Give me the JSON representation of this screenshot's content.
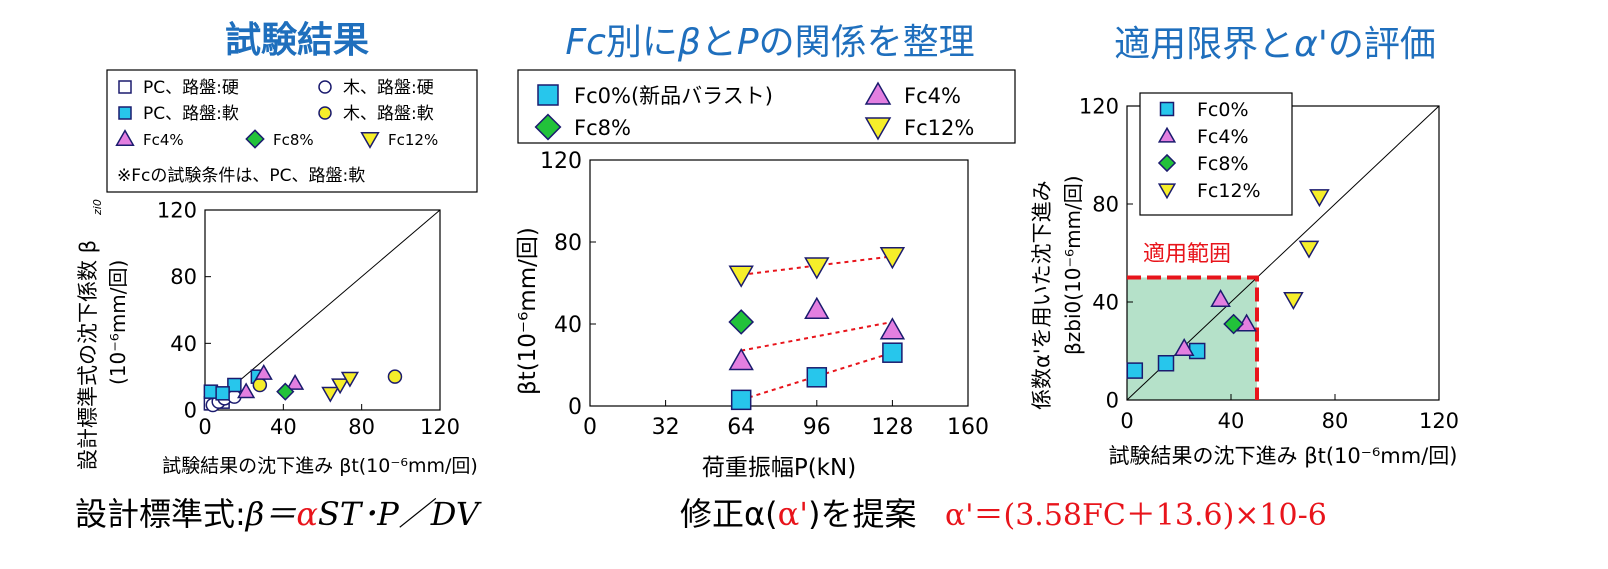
{
  "colors": {
    "blue_title": "#1f6fbd",
    "red": "#e8141b",
    "cyan": "#27c6ec",
    "magenta": "#e37fe0",
    "green": "#22c23a",
    "yellow": "#f6ee2a",
    "navy": "#1b1b6e",
    "range_fill": "#a8dcc0"
  },
  "titles": {
    "left": "試験結果",
    "middle_prefix": "Fc",
    "middle_rest_1": "別に",
    "middle_beta": "β",
    "middle_rest_2": "と",
    "middle_p": "P",
    "middle_rest_3": "の関係を整理",
    "right_1": "適用限界と",
    "right_alpha": "α'",
    "right_2": "の評価"
  },
  "bottom": {
    "formula_prefix": "設計標準式:",
    "formula_beta": "β＝",
    "formula_alpha": "α",
    "formula_rest": "ST･P／DV",
    "proposal_1": "修正α(",
    "proposal_alpha": "α'",
    "proposal_2": ")を提案",
    "proposal_formula": "α'＝(3.58FC＋13.6)×10-6"
  },
  "chart_data": [
    {
      "type": "scatter",
      "xlabel": "試験結果の沈下進み βt(10-6mm/回)",
      "ylabel": "設計標準式の沈下係数 βzi0",
      "yunit": "(10-6mm/回)",
      "xlim": [
        0,
        120
      ],
      "ylim": [
        0,
        120
      ],
      "xticks": [
        "0",
        "40",
        "80",
        "120"
      ],
      "yticks": [
        "0",
        "40",
        "80",
        "120"
      ],
      "legend": {
        "items": [
          "PC、路盤:硬",
          "木、路盤:硬",
          "PC、路盤:軟",
          "木、路盤:軟",
          "Fc4%",
          "Fc8%",
          "Fc12%"
        ],
        "note": "※Fcの試験条件は、PC、路盤:軟"
      },
      "series": [
        {
          "name": "PC、路盤:硬",
          "marker": "open-square",
          "points": [
            [
              3,
              4
            ],
            [
              6,
              8
            ],
            [
              9,
              5
            ]
          ]
        },
        {
          "name": "木、路盤:硬",
          "marker": "open-circle",
          "points": [
            [
              4,
              3
            ],
            [
              7,
              5
            ],
            [
              10,
              7
            ],
            [
              15,
              8
            ]
          ]
        },
        {
          "name": "PC、路盤:軟",
          "marker": "square",
          "points": [
            [
              3,
              11
            ],
            [
              15,
              15
            ],
            [
              27,
              20
            ],
            [
              9,
              10
            ]
          ]
        },
        {
          "name": "木、路盤:軟",
          "marker": "circle",
          "points": [
            [
              28,
              15
            ],
            [
              97,
              20
            ]
          ]
        },
        {
          "name": "Fc4%",
          "marker": "triangle-up",
          "points": [
            [
              21,
              11
            ],
            [
              30,
              22
            ],
            [
              46,
              16
            ]
          ]
        },
        {
          "name": "Fc8%",
          "marker": "diamond",
          "points": [
            [
              41,
              11
            ]
          ]
        },
        {
          "name": "Fc12%",
          "marker": "triangle-down",
          "points": [
            [
              64,
              10
            ],
            [
              69,
              15
            ],
            [
              74,
              19
            ]
          ]
        }
      ],
      "reference_line": "y=x"
    },
    {
      "type": "scatter",
      "xlabel": "荷重振幅P(kN)",
      "ylabel": "βt(10-6mm/回)",
      "xlim": [
        0,
        160
      ],
      "ylim": [
        0,
        120
      ],
      "xticks": [
        "0",
        "32",
        "64",
        "96",
        "128",
        "160"
      ],
      "yticks": [
        "0",
        "40",
        "80",
        "120"
      ],
      "legend": {
        "items": [
          "Fc0%(新品バラスト)",
          "Fc4%",
          "Fc8%",
          "Fc12%"
        ]
      },
      "series": [
        {
          "name": "Fc0%(新品バラスト)",
          "marker": "square",
          "points": [
            [
              64,
              3
            ],
            [
              96,
              14
            ],
            [
              128,
              26
            ]
          ],
          "trend": true
        },
        {
          "name": "Fc4%",
          "marker": "triangle-up",
          "points": [
            [
              64,
              22
            ],
            [
              96,
              47
            ],
            [
              128,
              37
            ]
          ],
          "trend_line": [
            [
              64,
              27
            ],
            [
              128,
              41
            ]
          ]
        },
        {
          "name": "Fc8%",
          "marker": "diamond",
          "points": [
            [
              64,
              41
            ]
          ]
        },
        {
          "name": "Fc12%",
          "marker": "triangle-down",
          "points": [
            [
              64,
              64
            ],
            [
              96,
              68
            ],
            [
              128,
              73
            ]
          ],
          "trend": true
        }
      ]
    },
    {
      "type": "scatter",
      "xlabel": "試験結果の沈下進み βt(10-6mm/回)",
      "ylabel": "係数α'を用いた沈下進み",
      "yunit": "βzbi0(10-6mm/回)",
      "xlim": [
        0,
        120
      ],
      "ylim": [
        0,
        120
      ],
      "xticks": [
        "0",
        "40",
        "80",
        "120"
      ],
      "yticks": [
        "0",
        "40",
        "80",
        "120"
      ],
      "legend": {
        "items": [
          "Fc0%",
          "Fc4%",
          "Fc8%",
          "Fc12%"
        ]
      },
      "range_label": "適用範囲",
      "range": [
        0,
        50
      ],
      "series": [
        {
          "name": "Fc0%",
          "marker": "square",
          "points": [
            [
              3,
              12
            ],
            [
              15,
              15
            ],
            [
              27,
              20
            ]
          ]
        },
        {
          "name": "Fc4%",
          "marker": "triangle-up",
          "points": [
            [
              22,
              21
            ],
            [
              36,
              41
            ],
            [
              46,
              31
            ]
          ]
        },
        {
          "name": "Fc8%",
          "marker": "diamond",
          "points": [
            [
              41,
              31
            ]
          ]
        },
        {
          "name": "Fc12%",
          "marker": "triangle-down",
          "points": [
            [
              64,
              41
            ],
            [
              70,
              62
            ],
            [
              74,
              83
            ]
          ]
        }
      ],
      "reference_line": "y=x"
    }
  ]
}
